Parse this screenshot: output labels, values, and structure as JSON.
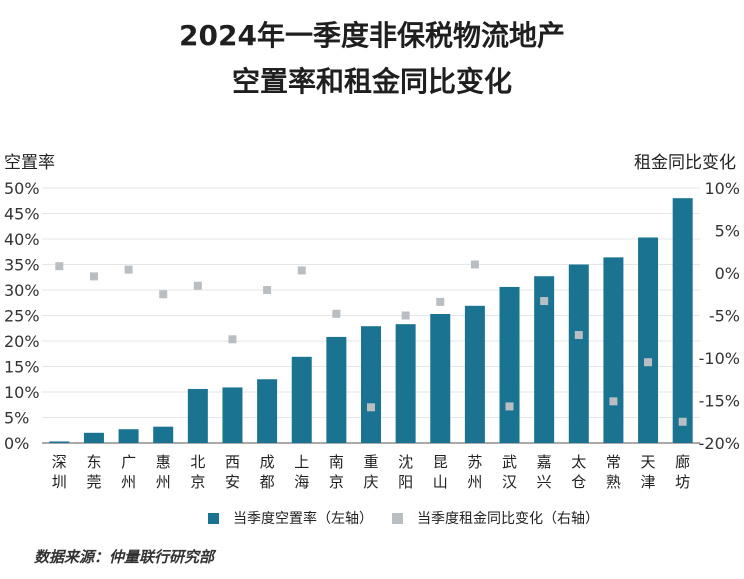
{
  "title_line1": "2024年一季度非保税物流地产",
  "title_line2": "空置率和租金同比变化",
  "source": "数据来源：仲量联行研究部",
  "colors": {
    "bar": "#1a7391",
    "marker": "#b9bec2",
    "grid": "#e6e6e6"
  },
  "chart_data": {
    "type": "bar",
    "title": "2024年一季度非保税物流地产空置率和租金同比变化",
    "ylabel_left": "空置率",
    "ylabel_right": "租金同比变化",
    "ylim_left": [
      0,
      50
    ],
    "ylim_right": [
      -20,
      10
    ],
    "yticks_left": [
      "0%",
      "5%",
      "10%",
      "15%",
      "20%",
      "25%",
      "30%",
      "35%",
      "40%",
      "45%",
      "50%"
    ],
    "yticks_right": [
      "-20%",
      "-15%",
      "-10%",
      "-5%",
      "0%",
      "5%",
      "10%"
    ],
    "categories": [
      "深圳",
      "东莞",
      "广州",
      "惠州",
      "北京",
      "西安",
      "成都",
      "上海",
      "南京",
      "重庆",
      "沈阳",
      "昆山",
      "苏州",
      "武汉",
      "嘉兴",
      "太仓",
      "常熟",
      "天津",
      "廊坊"
    ],
    "series": [
      {
        "name": "当季度空置率（左轴）",
        "type": "bar",
        "axis": "left",
        "values": [
          0.3,
          2.0,
          2.7,
          3.2,
          10.6,
          10.9,
          12.5,
          16.9,
          20.8,
          22.9,
          23.3,
          25.3,
          26.9,
          30.6,
          32.7,
          35.0,
          36.4,
          40.3,
          48.0
        ]
      },
      {
        "name": "当季度租金同比变化（右轴）",
        "type": "scatter",
        "axis": "right",
        "values": [
          0.8,
          -0.4,
          0.4,
          -2.5,
          -1.5,
          -7.8,
          -2.0,
          0.3,
          -4.8,
          -15.8,
          -5.0,
          -3.4,
          1.0,
          -15.7,
          -3.3,
          -7.3,
          -15.1,
          -10.5,
          -17.5
        ]
      }
    ],
    "grid": true,
    "legend_position": "bottom"
  }
}
